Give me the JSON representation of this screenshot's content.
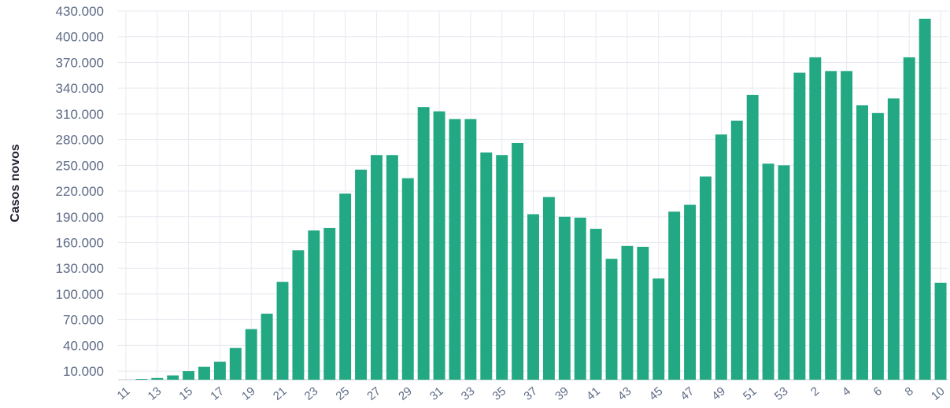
{
  "chart_data": {
    "type": "bar",
    "title": "",
    "xlabel": "",
    "ylabel": "Casos novos",
    "color": "#23a884",
    "grid": true,
    "legend": "none",
    "ylim": [
      0,
      430000
    ],
    "yticks": [
      10000,
      40000,
      70000,
      100000,
      130000,
      160000,
      190000,
      220000,
      250000,
      280000,
      310000,
      340000,
      370000,
      400000,
      430000
    ],
    "ytick_labels": [
      "10.000",
      "40.000",
      "70.000",
      "100.000",
      "130.000",
      "160.000",
      "190.000",
      "220.000",
      "250.000",
      "280.000",
      "310.000",
      "340.000",
      "370.000",
      "400.000",
      "430.000"
    ],
    "categories": [
      "11",
      "12",
      "13",
      "14",
      "15",
      "16",
      "17",
      "18",
      "19",
      "20",
      "21",
      "22",
      "23",
      "24",
      "25",
      "26",
      "27",
      "28",
      "29",
      "30",
      "31",
      "32",
      "33",
      "34",
      "35",
      "36",
      "37",
      "38",
      "39",
      "40",
      "41",
      "42",
      "43",
      "44",
      "45",
      "46",
      "47",
      "48",
      "49",
      "50",
      "51",
      "52",
      "53",
      "1",
      "2",
      "3",
      "4",
      "5",
      "6",
      "7",
      "8",
      "9",
      "10"
    ],
    "xtick_labels": [
      "11",
      "13",
      "15",
      "17",
      "19",
      "21",
      "23",
      "25",
      "27",
      "29",
      "31",
      "33",
      "35",
      "37",
      "39",
      "41",
      "43",
      "45",
      "47",
      "49",
      "51",
      "53",
      "2",
      "4",
      "6",
      "8",
      "10"
    ],
    "values": [
      0,
      500,
      2000,
      5000,
      10000,
      15000,
      21000,
      37000,
      59000,
      77000,
      114000,
      151000,
      174000,
      177000,
      217000,
      245000,
      262000,
      262000,
      235000,
      318000,
      313000,
      304000,
      304000,
      265000,
      262000,
      276000,
      193000,
      213000,
      190000,
      189000,
      176000,
      141000,
      156000,
      155000,
      118000,
      196000,
      204000,
      237000,
      286000,
      302000,
      332000,
      252000,
      250000,
      358000,
      376000,
      360000,
      360000,
      320000,
      311000,
      328000,
      376000,
      421000,
      113000
    ]
  }
}
